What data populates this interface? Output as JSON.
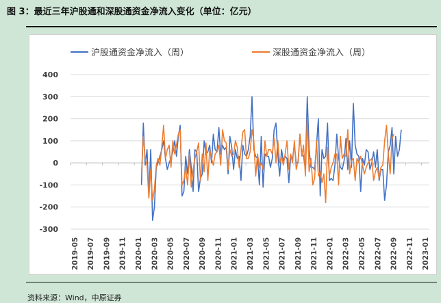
{
  "header": {
    "title": "图 3：最近三年沪股通和深股通资金净流入变化（单位：亿元）"
  },
  "footer": {
    "source": "资料来源：Wind，中原证券"
  },
  "chart_data": {
    "type": "line",
    "title": "",
    "xlabel": "",
    "ylabel": "",
    "ylim": [
      -300,
      400
    ],
    "yticks": [
      -300,
      -200,
      -100,
      0,
      100,
      200,
      300,
      400
    ],
    "grid": true,
    "legend": "top",
    "x_tick_labels": [
      "2019-05",
      "2019-07",
      "2019-09",
      "2019-11",
      "2020-01",
      "2020-03",
      "2020-05",
      "2020-07",
      "2020-09",
      "2020-11",
      "2021-01",
      "2021-03",
      "2021-05",
      "2021-07",
      "2021-09",
      "2021-11",
      "2022-01",
      "2022-03",
      "2022-05",
      "2022-07",
      "2022-09",
      "2022-11",
      "2023-01"
    ],
    "x_month_count": 45,
    "series_start_month": 8.4,
    "series_step_months": 0.231,
    "series": [
      {
        "name": "沪股通资金净流入（周）",
        "color": "#4472c4",
        "values": [
          -100,
          180,
          -10,
          60,
          -150,
          60,
          -260,
          -200,
          -20,
          0,
          30,
          60,
          100,
          20,
          -30,
          0,
          20,
          50,
          100,
          30,
          120,
          170,
          -150,
          -130,
          30,
          -50,
          60,
          -20,
          -130,
          60,
          50,
          -130,
          -70,
          -50,
          100,
          40,
          50,
          80,
          0,
          130,
          60,
          50,
          160,
          40,
          80,
          60,
          70,
          -50,
          120,
          70,
          -30,
          60,
          20,
          30,
          -80,
          80,
          40,
          30,
          60,
          120,
          300,
          60,
          30,
          20,
          -100,
          120,
          -110,
          40,
          30,
          30,
          -20,
          20,
          150,
          180,
          40,
          -60,
          60,
          10,
          30,
          20,
          -90,
          30,
          20,
          80,
          0,
          0,
          130,
          40,
          30,
          -30,
          300,
          60,
          -20,
          -20,
          -30,
          80,
          200,
          -150,
          60,
          20,
          30,
          180,
          -80,
          -70,
          -80,
          -10,
          130,
          20,
          -20,
          -30,
          10,
          110,
          -30,
          100,
          -20,
          270,
          80,
          40,
          30,
          -130,
          20,
          -10,
          60,
          50,
          -30,
          0,
          50,
          -20,
          60,
          -80,
          -30,
          -30,
          -170,
          -100,
          50,
          80,
          160,
          -50,
          120,
          30,
          60,
          150
        ]
      },
      {
        "name": "深股通资金净流入（周）",
        "color": "#ed7d31",
        "values": [
          -50,
          120,
          20,
          -10,
          -160,
          -30,
          -170,
          -120,
          -10,
          20,
          -10,
          70,
          170,
          20,
          60,
          80,
          -20,
          100,
          40,
          80,
          130,
          150,
          -100,
          -80,
          -20,
          -100,
          40,
          -110,
          -30,
          20,
          50,
          90,
          -80,
          40,
          -40,
          90,
          -80,
          60,
          20,
          -10,
          40,
          50,
          80,
          -10,
          150,
          100,
          90,
          -30,
          60,
          30,
          40,
          100,
          70,
          -20,
          60,
          140,
          150,
          20,
          20,
          50,
          150,
          100,
          -60,
          40,
          -20,
          0,
          -30,
          100,
          30,
          60,
          60,
          40,
          110,
          0,
          100,
          0,
          30,
          -10,
          40,
          100,
          -30,
          40,
          0,
          100,
          -30,
          10,
          130,
          30,
          80,
          -60,
          200,
          -40,
          20,
          -100,
          -70,
          100,
          -60,
          -40,
          -90,
          -50,
          -180,
          70,
          -60,
          -20,
          0,
          40,
          40,
          -100,
          120,
          20,
          40,
          30,
          150,
          -50,
          10,
          20,
          -80,
          20,
          0,
          30,
          -10,
          -50,
          -20,
          0,
          10,
          20,
          -80,
          -40,
          -20,
          -70,
          -20,
          -10,
          100,
          170,
          40,
          -50,
          110,
          130
        ]
      }
    ]
  }
}
